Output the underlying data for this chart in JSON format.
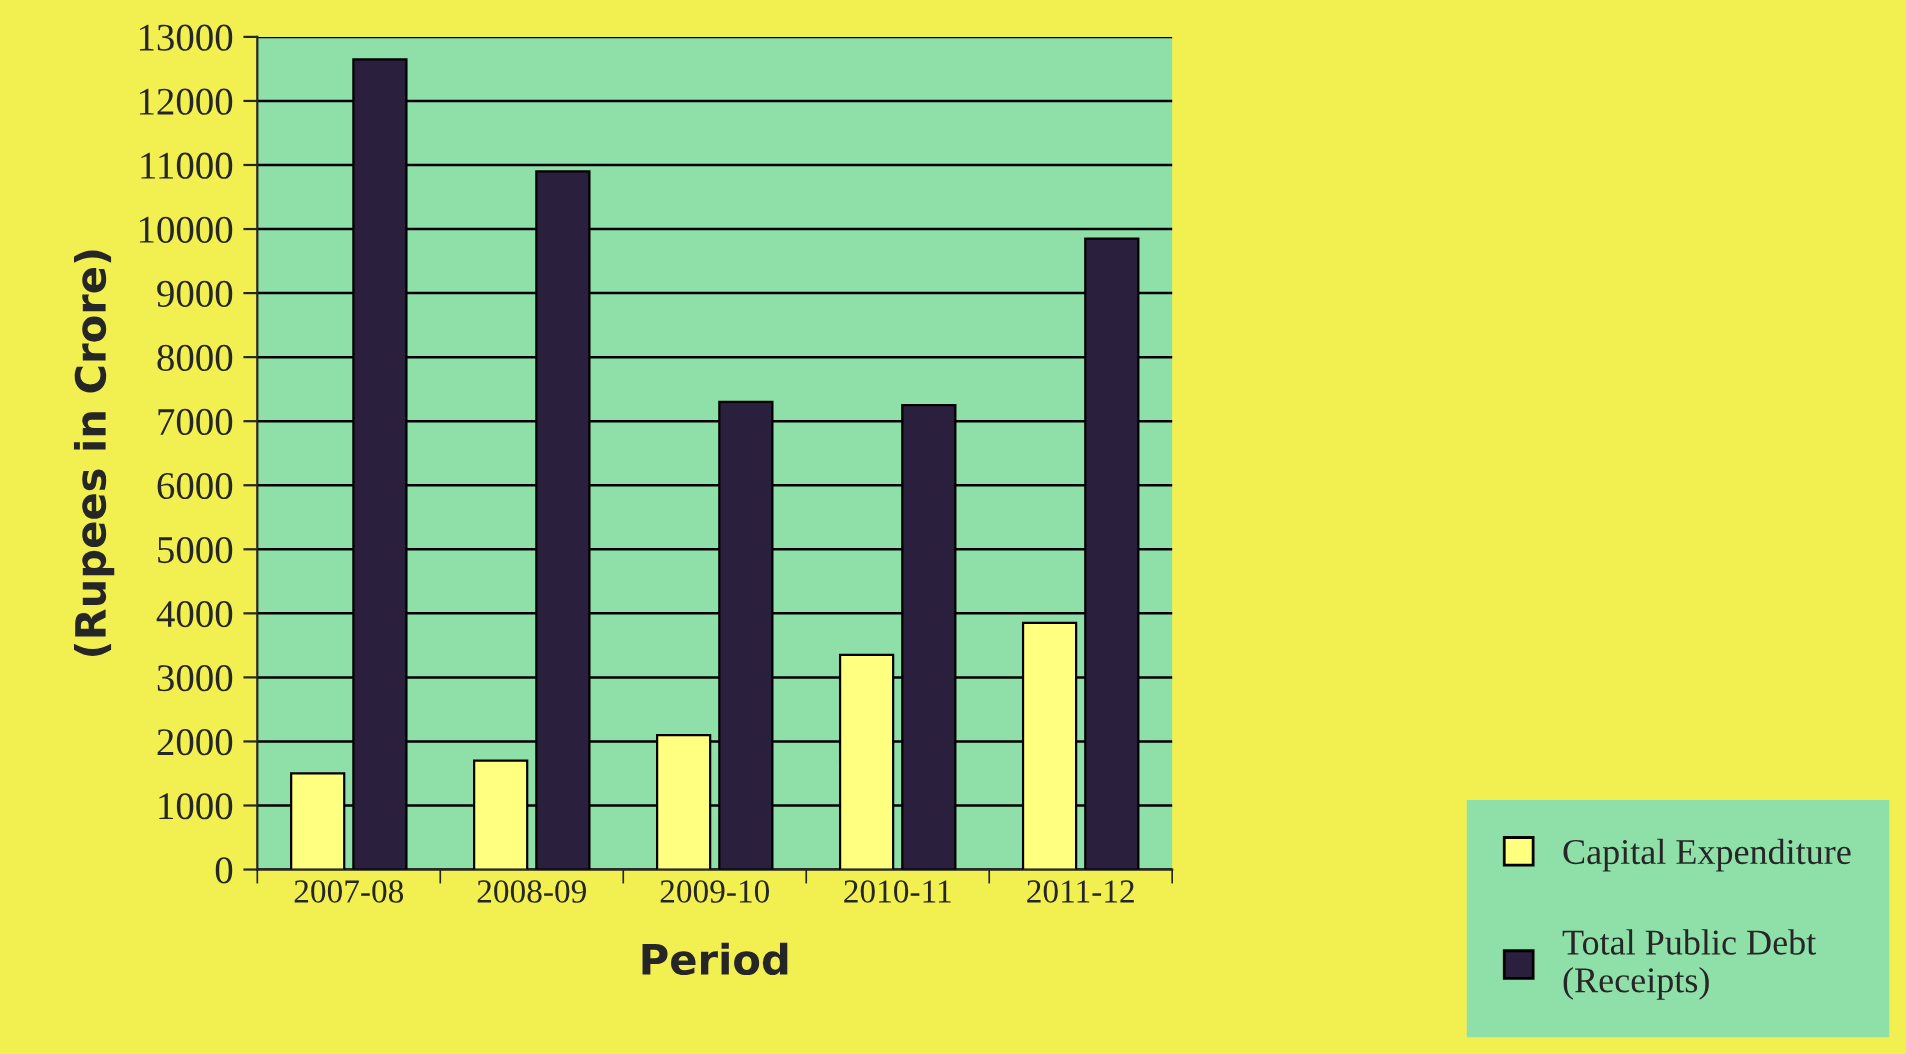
{
  "chart_data": {
    "type": "bar",
    "xlabel": "Period",
    "ylabel": "(Rupees in Crore)",
    "categories": [
      "2007-08",
      "2008-09",
      "2009-10",
      "2010-11",
      "2011-12"
    ],
    "series": [
      {
        "name": "Capital Expenditure",
        "color": "#ffff80",
        "values": [
          1500,
          1700,
          2100,
          3350,
          3850
        ]
      },
      {
        "name": "Total Public Debt\n(Receipts)",
        "color": "#2a1f3d",
        "values": [
          12650,
          10900,
          7300,
          7250,
          9850
        ]
      }
    ],
    "ylim": [
      0,
      13000
    ],
    "yticks": [
      0,
      1000,
      2000,
      3000,
      4000,
      5000,
      6000,
      7000,
      8000,
      9000,
      10000,
      11000,
      12000,
      13000
    ],
    "grid": "y",
    "legend": "bottom right"
  }
}
